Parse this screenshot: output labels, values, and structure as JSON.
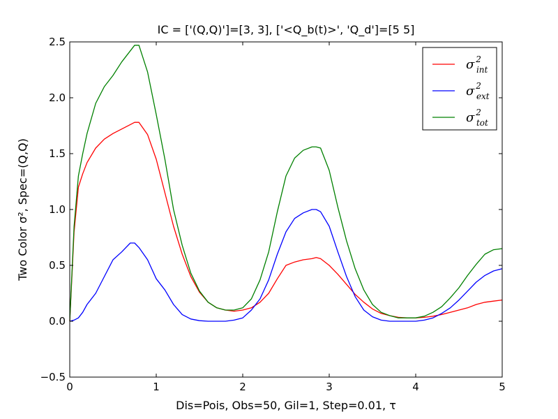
{
  "chart_data": {
    "type": "line",
    "title": "IC = ['(Q,Q)']=[3, 3], ['<Q_b(t)>', 'Q_d']=[5 5]",
    "xlabel": "Dis=Pois, Obs=50, Gil=1, Step=0.01, τ",
    "ylabel": "Two Color σ², Spec=(Q,Q)",
    "xlim": [
      0,
      5
    ],
    "ylim": [
      -0.5,
      2.5
    ],
    "xticks": [
      "0",
      "1",
      "2",
      "3",
      "4",
      "5"
    ],
    "yticks": [
      "−0.5",
      "0.0",
      "0.5",
      "1.0",
      "1.5",
      "2.0",
      "2.5"
    ],
    "grid": false,
    "legend_position": "top-right",
    "series": [
      {
        "name": "σ²int",
        "base": "σ",
        "sup": "2",
        "sub": "int",
        "color": "#ff0000",
        "x": [
          0,
          0.05,
          0.1,
          0.15,
          0.2,
          0.3,
          0.4,
          0.5,
          0.6,
          0.7,
          0.75,
          0.8,
          0.9,
          1.0,
          1.1,
          1.2,
          1.3,
          1.4,
          1.5,
          1.6,
          1.7,
          1.8,
          1.9,
          2.0,
          2.1,
          2.2,
          2.3,
          2.4,
          2.5,
          2.6,
          2.7,
          2.8,
          2.85,
          2.9,
          3.0,
          3.1,
          3.2,
          3.3,
          3.4,
          3.5,
          3.6,
          3.7,
          3.8,
          3.9,
          4.0,
          4.1,
          4.2,
          4.3,
          4.4,
          4.5,
          4.6,
          4.7,
          4.8,
          4.9,
          5.0
        ],
        "values": [
          0.0,
          0.8,
          1.2,
          1.32,
          1.42,
          1.55,
          1.63,
          1.68,
          1.72,
          1.76,
          1.78,
          1.78,
          1.67,
          1.45,
          1.15,
          0.85,
          0.6,
          0.4,
          0.26,
          0.17,
          0.12,
          0.1,
          0.09,
          0.1,
          0.12,
          0.17,
          0.25,
          0.38,
          0.5,
          0.53,
          0.55,
          0.56,
          0.57,
          0.56,
          0.5,
          0.42,
          0.33,
          0.24,
          0.17,
          0.11,
          0.07,
          0.05,
          0.035,
          0.03,
          0.03,
          0.035,
          0.045,
          0.06,
          0.08,
          0.1,
          0.12,
          0.15,
          0.17,
          0.18,
          0.19
        ]
      },
      {
        "name": "σ²ext",
        "base": "σ",
        "sup": "2",
        "sub": "ext",
        "color": "#0000ff",
        "x": [
          0,
          0.05,
          0.1,
          0.15,
          0.2,
          0.3,
          0.4,
          0.5,
          0.6,
          0.7,
          0.75,
          0.8,
          0.9,
          1.0,
          1.1,
          1.2,
          1.3,
          1.4,
          1.5,
          1.6,
          1.7,
          1.8,
          1.9,
          2.0,
          2.1,
          2.2,
          2.3,
          2.4,
          2.5,
          2.6,
          2.7,
          2.8,
          2.85,
          2.9,
          3.0,
          3.1,
          3.2,
          3.3,
          3.4,
          3.5,
          3.6,
          3.7,
          3.8,
          3.9,
          4.0,
          4.1,
          4.2,
          4.3,
          4.4,
          4.5,
          4.6,
          4.7,
          4.8,
          4.9,
          5.0
        ],
        "values": [
          0.0,
          0.01,
          0.03,
          0.08,
          0.15,
          0.25,
          0.4,
          0.55,
          0.62,
          0.7,
          0.7,
          0.66,
          0.55,
          0.38,
          0.28,
          0.15,
          0.06,
          0.02,
          0.005,
          0.0,
          0.0,
          0.0,
          0.01,
          0.03,
          0.1,
          0.2,
          0.37,
          0.6,
          0.8,
          0.92,
          0.97,
          1.0,
          1.0,
          0.98,
          0.85,
          0.62,
          0.4,
          0.22,
          0.1,
          0.04,
          0.01,
          0.0,
          0.0,
          0.0,
          0.0,
          0.01,
          0.03,
          0.07,
          0.12,
          0.19,
          0.27,
          0.35,
          0.41,
          0.45,
          0.47
        ]
      },
      {
        "name": "σ²tot",
        "base": "σ",
        "sup": "2",
        "sub": "tot",
        "color": "#008000",
        "x": [
          0,
          0.05,
          0.1,
          0.15,
          0.2,
          0.3,
          0.4,
          0.5,
          0.6,
          0.7,
          0.75,
          0.8,
          0.9,
          1.0,
          1.1,
          1.2,
          1.3,
          1.4,
          1.5,
          1.6,
          1.7,
          1.8,
          1.9,
          2.0,
          2.1,
          2.2,
          2.3,
          2.4,
          2.5,
          2.6,
          2.7,
          2.8,
          2.85,
          2.9,
          3.0,
          3.1,
          3.2,
          3.3,
          3.4,
          3.5,
          3.6,
          3.7,
          3.8,
          3.9,
          4.0,
          4.1,
          4.2,
          4.3,
          4.4,
          4.5,
          4.6,
          4.7,
          4.8,
          4.9,
          5.0
        ],
        "values": [
          0.0,
          0.85,
          1.3,
          1.5,
          1.68,
          1.95,
          2.1,
          2.2,
          2.32,
          2.42,
          2.47,
          2.47,
          2.23,
          1.85,
          1.45,
          1.0,
          0.68,
          0.43,
          0.27,
          0.17,
          0.12,
          0.1,
          0.1,
          0.12,
          0.2,
          0.37,
          0.62,
          0.98,
          1.3,
          1.46,
          1.53,
          1.56,
          1.56,
          1.55,
          1.35,
          1.02,
          0.72,
          0.47,
          0.28,
          0.15,
          0.08,
          0.05,
          0.03,
          0.03,
          0.03,
          0.045,
          0.08,
          0.13,
          0.21,
          0.3,
          0.41,
          0.51,
          0.6,
          0.64,
          0.65
        ]
      }
    ]
  }
}
